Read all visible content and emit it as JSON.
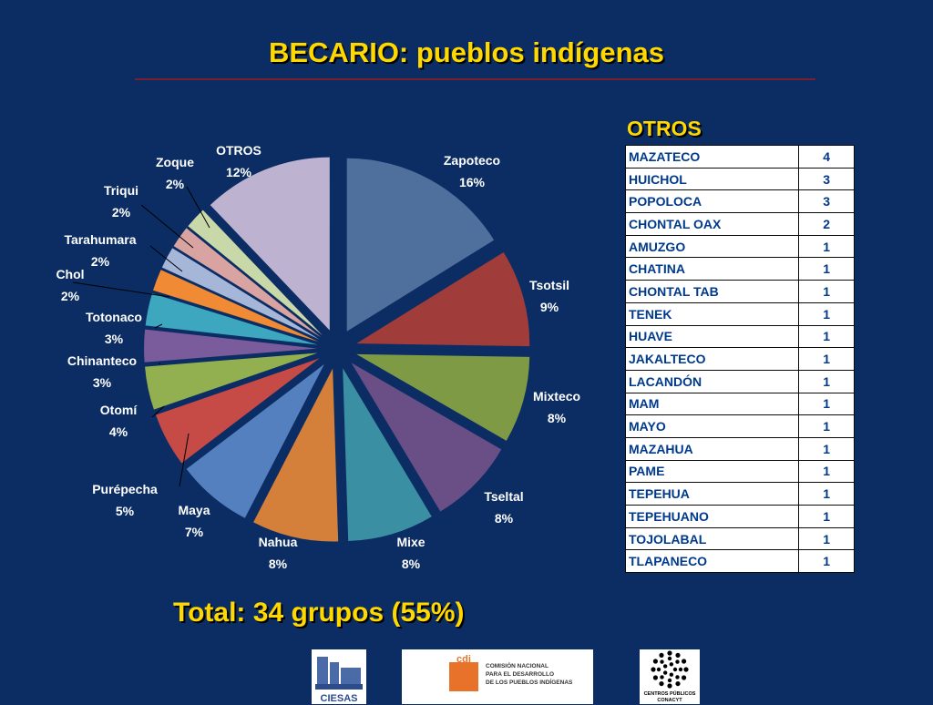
{
  "title": "BECARIO: pueblos indígenas",
  "chart_data": {
    "type": "pie",
    "slices": [
      {
        "label": "Zapoteco",
        "value_label": "16%",
        "value": 16,
        "color": "#4f6f9c"
      },
      {
        "label": "Tsotsil",
        "value_label": "9%",
        "value": 9,
        "color": "#a03c3a"
      },
      {
        "label": "Mixteco",
        "value_label": "8%",
        "value": 8,
        "color": "#7f9a44"
      },
      {
        "label": "Tseltal",
        "value_label": "8%",
        "value": 8,
        "color": "#6a4f86"
      },
      {
        "label": "Mixe",
        "value_label": "8%",
        "value": 8,
        "color": "#3a8fa3"
      },
      {
        "label": "Nahua",
        "value_label": "8%",
        "value": 8,
        "color": "#d47f3a"
      },
      {
        "label": "Maya",
        "value_label": "7%",
        "value": 7,
        "color": "#5580c0"
      },
      {
        "label": "Purépecha",
        "value_label": "5%",
        "value": 5,
        "color": "#c64a46"
      },
      {
        "label": "Otomí",
        "value_label": "4%",
        "value": 4,
        "color": "#92b050"
      },
      {
        "label": "Chinanteco",
        "value_label": "3%",
        "value": 3,
        "color": "#7a5b9c"
      },
      {
        "label": "Totonaco",
        "value_label": "3%",
        "value": 3,
        "color": "#3ea7c0"
      },
      {
        "label": "Chol",
        "value_label": "2%",
        "value": 2,
        "color": "#f08a34"
      },
      {
        "label": "Tarahumara",
        "value_label": "2%",
        "value": 2,
        "color": "#a6b6d8"
      },
      {
        "label": "Triqui",
        "value_label": "2%",
        "value": 2,
        "color": "#d9a3a2"
      },
      {
        "label": "Zoque",
        "value_label": "2%",
        "value": 2,
        "color": "#c9d8a8"
      },
      {
        "label": "OTROS",
        "value_label": "12%",
        "value": 12,
        "color": "#bdb3d0"
      }
    ]
  },
  "otros": {
    "title": "OTROS",
    "rows": [
      {
        "name": "MAZATECO",
        "value": "4"
      },
      {
        "name": "HUICHOL",
        "value": "3"
      },
      {
        "name": "POPOLOCA",
        "value": "3"
      },
      {
        "name": "CHONTAL OAX",
        "value": "2"
      },
      {
        "name": "AMUZGO",
        "value": "1"
      },
      {
        "name": "CHATINA",
        "value": "1"
      },
      {
        "name": "CHONTAL TAB",
        "value": "1"
      },
      {
        "name": "TENEK",
        "value": "1"
      },
      {
        "name": "HUAVE",
        "value": "1"
      },
      {
        "name": "JAKALTECO",
        "value": "1"
      },
      {
        "name": "LACANDÓN",
        "value": "1"
      },
      {
        "name": "MAM",
        "value": "1"
      },
      {
        "name": "MAYO",
        "value": "1"
      },
      {
        "name": "MAZAHUA",
        "value": "1"
      },
      {
        "name": "PAME",
        "value": "1"
      },
      {
        "name": "TEPEHUA",
        "value": "1"
      },
      {
        "name": "TEPEHUANO",
        "value": "1"
      },
      {
        "name": "TOJOLABAL",
        "value": "1"
      },
      {
        "name": "TLAPANECO",
        "value": "1"
      }
    ]
  },
  "total": "Total: 34 grupos (55%)",
  "logos": {
    "ciesas": "CIESAS",
    "cdi_mark": "cdi",
    "cdi_text": [
      "COMISIÓN NACIONAL",
      "PARA EL DESARROLLO",
      "DE LOS PUEBLOS INDÍGENAS"
    ],
    "conacyt": [
      "CENTROS PÚBLICOS",
      "CONACYT"
    ]
  }
}
